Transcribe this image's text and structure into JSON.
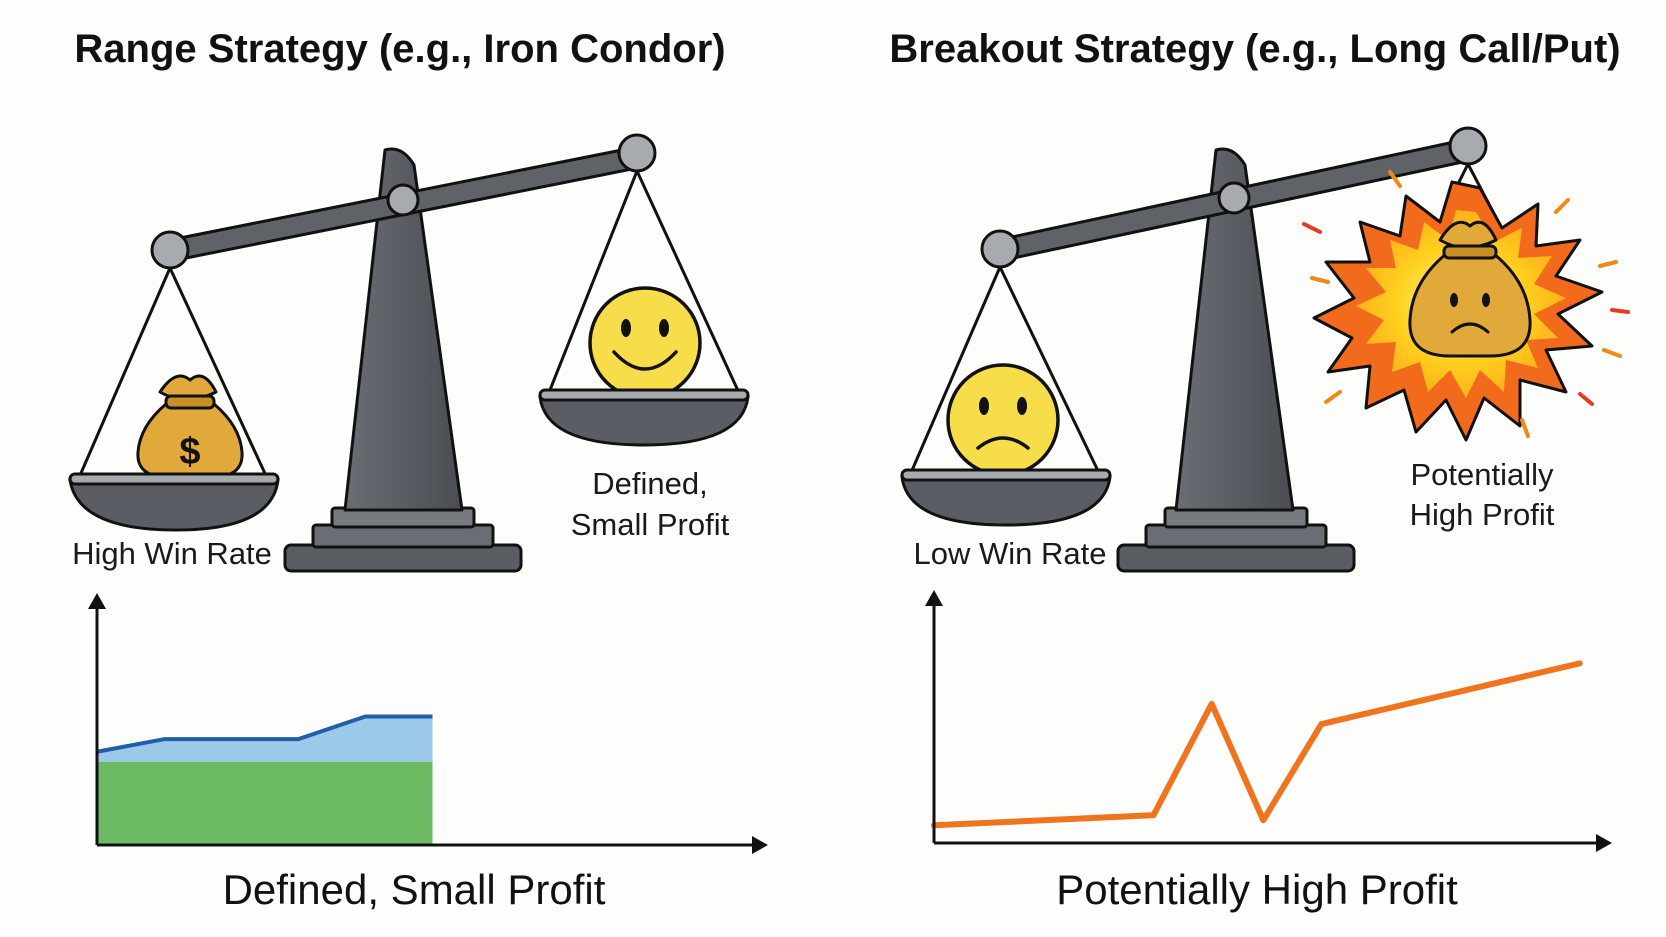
{
  "left_panel": {
    "title": "Range Strategy (e.g., Iron Condor)",
    "left_pan_label": "High Win Rate",
    "right_pan_label_line1": "Defined,",
    "right_pan_label_line2": "Small Profit",
    "caption": "Defined, Small Profit",
    "left_pan_icon": "money-bag-dollar",
    "right_pan_icon": "smiley-face"
  },
  "right_panel": {
    "title": "Breakout Strategy (e.g., Long Call/Put)",
    "left_pan_label": "Low Win Rate",
    "right_pan_label_line1": "Potentially",
    "right_pan_label_line2": "High Profit",
    "caption": "Potentially High Profit",
    "left_pan_icon": "sad-face",
    "right_pan_icon": "money-bag-sad-explosion"
  },
  "colors": {
    "scale": "#5f6368",
    "scale_dark": "#4a4d52",
    "outline": "#111111",
    "emoji": "#f7dd4a",
    "bag": "#e0a93a",
    "range_fill_top": "#9cc8ea",
    "range_fill_bottom": "#6cbb64",
    "range_line": "#1f5fa8",
    "breakout_line": "#f0731e",
    "burst_outer": "#f26b1d",
    "burst_inner": "#ffd21f"
  },
  "chart_data": [
    {
      "type": "area",
      "title": "Defined, Small Profit",
      "x": [
        0,
        1,
        2,
        3,
        4,
        5
      ],
      "series": [
        {
          "name": "range-profit",
          "values": [
            3.7,
            4.2,
            4.2,
            4.2,
            5.1,
            5.1
          ]
        },
        {
          "name": "range-baseline",
          "values": [
            3.3,
            3.3,
            3.3,
            3.3,
            3.3,
            3.3
          ]
        }
      ],
      "xlim": [
        0,
        10
      ],
      "ylim": [
        0,
        10
      ],
      "xlabel": "",
      "ylabel": "",
      "grid": false
    },
    {
      "type": "line",
      "title": "Potentially High Profit",
      "x": [
        0,
        3.4,
        4.3,
        5.1,
        6.0,
        10
      ],
      "series": [
        {
          "name": "breakout-profit",
          "values": [
            0.7,
            1.1,
            5.5,
            0.9,
            4.7,
            7.1
          ]
        }
      ],
      "xlim": [
        0,
        10.5
      ],
      "ylim": [
        0,
        10
      ],
      "xlabel": "",
      "ylabel": "",
      "grid": false
    }
  ]
}
